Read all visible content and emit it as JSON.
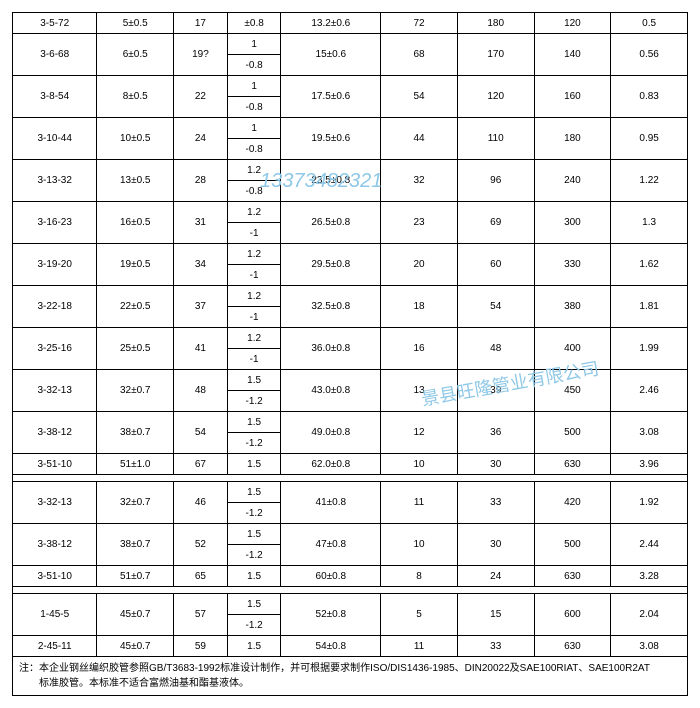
{
  "watermarks": {
    "w1": "13373482321",
    "w2": "景县旺隆管业有限公司"
  },
  "col_widths": [
    "11%",
    "10%",
    "7%",
    "7%",
    "13%",
    "10%",
    "10%",
    "10%",
    "10%"
  ],
  "rows": [
    {
      "c0": "3-5-72",
      "c1": "5±0.5",
      "c2": "17",
      "c3a": "±0.8",
      "c3b": null,
      "c4": "13.2±0.6",
      "c5": "72",
      "c6": "180",
      "c7": "120",
      "c8": "0.5"
    },
    {
      "c0": "3-6-68",
      "c1": "6±0.5",
      "c2": "19?",
      "c3a": "1",
      "c3b": "-0.8",
      "c4": "15±0.6",
      "c5": "68",
      "c6": "170",
      "c7": "140",
      "c8": "0.56"
    },
    {
      "c0": "3-8-54",
      "c1": "8±0.5",
      "c2": "22",
      "c3a": "1",
      "c3b": "-0.8",
      "c4": "17.5±0.6",
      "c5": "54",
      "c6": "120",
      "c7": "160",
      "c8": "0.83"
    },
    {
      "c0": "3-10-44",
      "c1": "10±0.5",
      "c2": "24",
      "c3a": "1",
      "c3b": "-0.8",
      "c4": "19.5±0.6",
      "c5": "44",
      "c6": "110",
      "c7": "180",
      "c8": "0.95"
    },
    {
      "c0": "3-13-32",
      "c1": "13±0.5",
      "c2": "28",
      "c3a": "1.2",
      "c3b": "-0.8",
      "c4": "23.5±0.8",
      "c5": "32",
      "c6": "96",
      "c7": "240",
      "c8": "1.22"
    },
    {
      "c0": "3-16-23",
      "c1": "16±0.5",
      "c2": "31",
      "c3a": "1.2",
      "c3b": "-1",
      "c4": "26.5±0.8",
      "c5": "23",
      "c6": "69",
      "c7": "300",
      "c8": "1.3"
    },
    {
      "c0": "3-19-20",
      "c1": "19±0.5",
      "c2": "34",
      "c3a": "1.2",
      "c3b": "-1",
      "c4": "29.5±0.8",
      "c5": "20",
      "c6": "60",
      "c7": "330",
      "c8": "1.62"
    },
    {
      "c0": "3-22-18",
      "c1": "22±0.5",
      "c2": "37",
      "c3a": "1.2",
      "c3b": "-1",
      "c4": "32.5±0.8",
      "c5": "18",
      "c6": "54",
      "c7": "380",
      "c8": "1.81"
    },
    {
      "c0": "3-25-16",
      "c1": "25±0.5",
      "c2": "41",
      "c3a": "1.2",
      "c3b": "-1",
      "c4": "36.0±0.8",
      "c5": "16",
      "c6": "48",
      "c7": "400",
      "c8": "1.99"
    },
    {
      "c0": "3-32-13",
      "c1": "32±0.7",
      "c2": "48",
      "c3a": "1.5",
      "c3b": "-1.2",
      "c4": "43.0±0.8",
      "c5": "13",
      "c6": "39",
      "c7": "450",
      "c8": "2.46"
    },
    {
      "c0": "3-38-12",
      "c1": "38±0.7",
      "c2": "54",
      "c3a": "1.5",
      "c3b": "-1.2",
      "c4": "49.0±0.8",
      "c5": "12",
      "c6": "36",
      "c7": "500",
      "c8": "3.08"
    },
    {
      "c0": "3-51-10",
      "c1": "51±1.0",
      "c2": "67",
      "c3a": "1.5",
      "c3b": null,
      "c4": "62.0±0.8",
      "c5": "10",
      "c6": "30",
      "c7": "630",
      "c8": "3.96"
    }
  ],
  "section2": [
    {
      "c0": "3-32-13",
      "c1": "32±0.7",
      "c2": "46",
      "c3a": "1.5",
      "c3b": "-1.2",
      "c4": "41±0.8",
      "c5": "11",
      "c6": "33",
      "c7": "420",
      "c8": "1.92"
    },
    {
      "c0": "3-38-12",
      "c1": "38±0.7",
      "c2": "52",
      "c3a": "1.5",
      "c3b": "-1.2",
      "c4": "47±0.8",
      "c5": "10",
      "c6": "30",
      "c7": "500",
      "c8": "2.44"
    },
    {
      "c0": "3-51-10",
      "c1": "51±0.7",
      "c2": "65",
      "c3a": "1.5",
      "c3b": null,
      "c4": "60±0.8",
      "c5": "8",
      "c6": "24",
      "c7": "630",
      "c8": "3.28"
    }
  ],
  "section3": [
    {
      "c0": "1-45-5",
      "c1": "45±0.7",
      "c2": "57",
      "c3a": "1.5",
      "c3b": "-1.2",
      "c4": "52±0.8",
      "c5": "5",
      "c6": "15",
      "c7": "600",
      "c8": "2.04"
    },
    {
      "c0": "2-45-11",
      "c1": "45±0.7",
      "c2": "59",
      "c3a": "1.5",
      "c3b": null,
      "c4": "54±0.8",
      "c5": "11",
      "c6": "33",
      "c7": "630",
      "c8": "3.08"
    }
  ],
  "footnote_label": "注：",
  "footnote_line1": "本企业钢丝编织胶管参照GB/T3683-1992标准设计制作，并可根据要求制作ISO/DIS1436-1985、DIN20022及SAE100RIAT、SAE100R2AT",
  "footnote_line2": "标准胶管。本标准不适合富燃油基和酯基液体。"
}
